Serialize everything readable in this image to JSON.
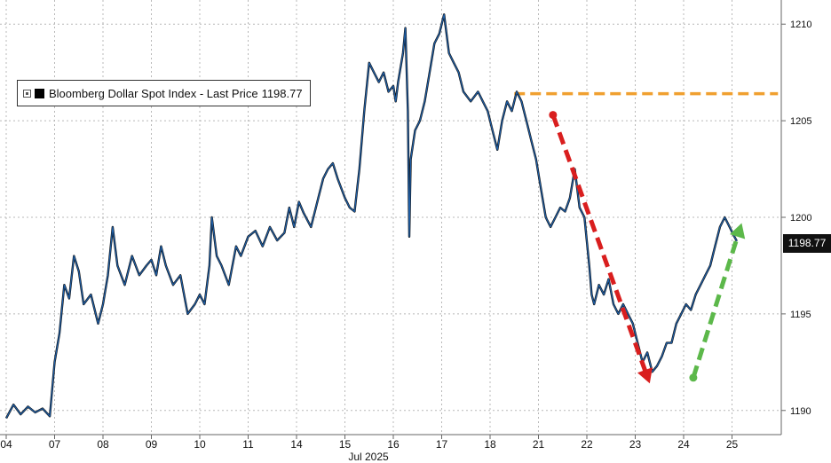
{
  "chart_data": {
    "type": "line",
    "series": [
      {
        "name": "Bloomberg Dollar Spot Index - Last Price",
        "last_value": "1198.77",
        "color": "#1e5fa8",
        "points": [
          [
            0.0,
            1189.6
          ],
          [
            0.15,
            1190.3
          ],
          [
            0.3,
            1189.8
          ],
          [
            0.45,
            1190.2
          ],
          [
            0.6,
            1189.9
          ],
          [
            0.75,
            1190.1
          ],
          [
            0.9,
            1189.7
          ],
          [
            1.0,
            1192.5
          ],
          [
            1.1,
            1194.0
          ],
          [
            1.2,
            1196.5
          ],
          [
            1.3,
            1195.8
          ],
          [
            1.4,
            1198.0
          ],
          [
            1.5,
            1197.2
          ],
          [
            1.6,
            1195.5
          ],
          [
            1.75,
            1196.0
          ],
          [
            1.9,
            1194.5
          ],
          [
            2.0,
            1195.5
          ],
          [
            2.1,
            1197.0
          ],
          [
            2.2,
            1199.5
          ],
          [
            2.3,
            1197.5
          ],
          [
            2.45,
            1196.5
          ],
          [
            2.6,
            1198.0
          ],
          [
            2.75,
            1197.0
          ],
          [
            2.9,
            1197.5
          ],
          [
            3.0,
            1197.8
          ],
          [
            3.1,
            1197.0
          ],
          [
            3.2,
            1198.5
          ],
          [
            3.3,
            1197.5
          ],
          [
            3.45,
            1196.5
          ],
          [
            3.6,
            1197.0
          ],
          [
            3.75,
            1195.0
          ],
          [
            3.9,
            1195.5
          ],
          [
            4.0,
            1196.0
          ],
          [
            4.1,
            1195.5
          ],
          [
            4.2,
            1197.5
          ],
          [
            4.25,
            1200.0
          ],
          [
            4.35,
            1198.0
          ],
          [
            4.45,
            1197.5
          ],
          [
            4.6,
            1196.5
          ],
          [
            4.75,
            1198.5
          ],
          [
            4.85,
            1198.0
          ],
          [
            5.0,
            1199.0
          ],
          [
            5.15,
            1199.3
          ],
          [
            5.3,
            1198.5
          ],
          [
            5.45,
            1199.5
          ],
          [
            5.6,
            1198.8
          ],
          [
            5.75,
            1199.2
          ],
          [
            5.85,
            1200.5
          ],
          [
            5.95,
            1199.5
          ],
          [
            6.05,
            1200.8
          ],
          [
            6.15,
            1200.2
          ],
          [
            6.3,
            1199.5
          ],
          [
            6.45,
            1201.0
          ],
          [
            6.55,
            1202.0
          ],
          [
            6.65,
            1202.5
          ],
          [
            6.75,
            1202.8
          ],
          [
            6.85,
            1202.0
          ],
          [
            7.0,
            1201.0
          ],
          [
            7.1,
            1200.5
          ],
          [
            7.2,
            1200.3
          ],
          [
            7.3,
            1202.5
          ],
          [
            7.4,
            1205.5
          ],
          [
            7.5,
            1208.0
          ],
          [
            7.6,
            1207.5
          ],
          [
            7.7,
            1207.0
          ],
          [
            7.8,
            1207.5
          ],
          [
            7.9,
            1206.5
          ],
          [
            8.0,
            1206.8
          ],
          [
            8.05,
            1206.0
          ],
          [
            8.1,
            1207.0
          ],
          [
            8.2,
            1208.5
          ],
          [
            8.25,
            1209.8
          ],
          [
            8.3,
            1205.5
          ],
          [
            8.33,
            1199.0
          ],
          [
            8.36,
            1203.0
          ],
          [
            8.45,
            1204.5
          ],
          [
            8.55,
            1205.0
          ],
          [
            8.65,
            1206.0
          ],
          [
            8.75,
            1207.5
          ],
          [
            8.85,
            1209.0
          ],
          [
            8.95,
            1209.5
          ],
          [
            9.05,
            1210.5
          ],
          [
            9.15,
            1208.5
          ],
          [
            9.25,
            1208.0
          ],
          [
            9.35,
            1207.5
          ],
          [
            9.45,
            1206.5
          ],
          [
            9.6,
            1206.0
          ],
          [
            9.75,
            1206.5
          ],
          [
            9.85,
            1206.0
          ],
          [
            9.95,
            1205.5
          ],
          [
            10.05,
            1204.5
          ],
          [
            10.15,
            1203.5
          ],
          [
            10.25,
            1205.0
          ],
          [
            10.35,
            1206.0
          ],
          [
            10.45,
            1205.5
          ],
          [
            10.55,
            1206.5
          ],
          [
            10.65,
            1206.0
          ],
          [
            10.75,
            1205.0
          ],
          [
            10.85,
            1204.0
          ],
          [
            10.95,
            1203.0
          ],
          [
            11.05,
            1201.5
          ],
          [
            11.15,
            1200.0
          ],
          [
            11.25,
            1199.5
          ],
          [
            11.35,
            1200.0
          ],
          [
            11.45,
            1200.5
          ],
          [
            11.55,
            1200.3
          ],
          [
            11.65,
            1201.0
          ],
          [
            11.75,
            1202.5
          ],
          [
            11.85,
            1200.5
          ],
          [
            11.95,
            1200.0
          ],
          [
            12.05,
            1197.5
          ],
          [
            12.1,
            1196.0
          ],
          [
            12.15,
            1195.5
          ],
          [
            12.25,
            1196.5
          ],
          [
            12.35,
            1196.0
          ],
          [
            12.45,
            1196.8
          ],
          [
            12.55,
            1195.5
          ],
          [
            12.65,
            1195.0
          ],
          [
            12.75,
            1195.5
          ],
          [
            12.85,
            1195.0
          ],
          [
            12.95,
            1194.5
          ],
          [
            13.05,
            1193.5
          ],
          [
            13.15,
            1192.5
          ],
          [
            13.25,
            1193.0
          ],
          [
            13.35,
            1192.0
          ],
          [
            13.45,
            1192.3
          ],
          [
            13.55,
            1192.8
          ],
          [
            13.65,
            1193.5
          ],
          [
            13.75,
            1193.5
          ],
          [
            13.85,
            1194.5
          ],
          [
            13.95,
            1195.0
          ],
          [
            14.05,
            1195.5
          ],
          [
            14.15,
            1195.2
          ],
          [
            14.25,
            1196.0
          ],
          [
            14.35,
            1196.5
          ],
          [
            14.45,
            1197.0
          ],
          [
            14.55,
            1197.5
          ],
          [
            14.65,
            1198.5
          ],
          [
            14.75,
            1199.5
          ],
          [
            14.85,
            1200.0
          ],
          [
            14.95,
            1199.5
          ],
          [
            15.05,
            1199.0
          ],
          [
            15.1,
            1198.77
          ]
        ]
      }
    ],
    "x_ticks": [
      {
        "x": 0,
        "label": "04"
      },
      {
        "x": 1,
        "label": "07"
      },
      {
        "x": 2,
        "label": "08"
      },
      {
        "x": 3,
        "label": "09"
      },
      {
        "x": 4,
        "label": "10"
      },
      {
        "x": 5,
        "label": "11"
      },
      {
        "x": 6,
        "label": "14"
      },
      {
        "x": 7,
        "label": "15"
      },
      {
        "x": 8,
        "label": "16"
      },
      {
        "x": 9,
        "label": "17"
      },
      {
        "x": 10,
        "label": "18"
      },
      {
        "x": 11,
        "label": "21"
      },
      {
        "x": 12,
        "label": "22"
      },
      {
        "x": 13,
        "label": "23"
      },
      {
        "x": 14,
        "label": "24"
      },
      {
        "x": 15,
        "label": "25"
      }
    ],
    "x_title": "Jul 2025",
    "x_range": [
      0,
      15.95
    ],
    "y_ticks": [
      1190,
      1195,
      1200,
      1205,
      1210
    ],
    "y_range": [
      1188.75,
      1211.25
    ],
    "axis_side": "right",
    "grid": true,
    "legend_position": "top-left",
    "annotations": [
      {
        "kind": "dashed-line",
        "color": "#f0a030",
        "from": [
          10.5,
          1206.4
        ],
        "to": [
          15.95,
          1206.4
        ]
      },
      {
        "kind": "dashed-arrow",
        "color": "#d91e1e",
        "from": [
          11.3,
          1205.3
        ],
        "to": [
          13.3,
          1191.4
        ]
      },
      {
        "kind": "dashed-arrow",
        "color": "#5cb84a",
        "from": [
          14.2,
          1191.7
        ],
        "to": [
          15.2,
          1199.7
        ]
      }
    ]
  }
}
